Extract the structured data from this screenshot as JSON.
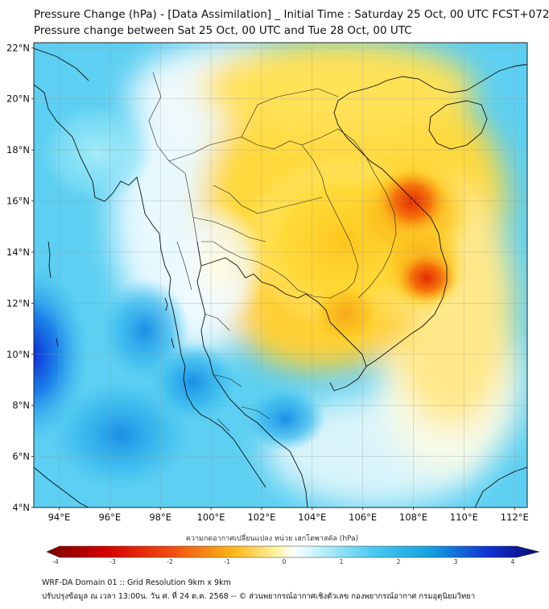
{
  "header": {
    "title_line1": "Pressure Change (hPa) - [Data Assimilation] _ Initial Time : Saturday 25 Oct, 00 UTC FCST+072",
    "title_line2": "Pressure change between Sat 25 Oct, 00 UTC and Tue 28 Oct, 00 UTC"
  },
  "map": {
    "lat_labels": [
      "22°N",
      "20°N",
      "18°N",
      "16°N",
      "14°N",
      "12°N",
      "10°N",
      "8°N",
      "6°N",
      "4°N"
    ],
    "lat_values": [
      22,
      20,
      18,
      16,
      14,
      12,
      10,
      8,
      6,
      4
    ],
    "lon_labels": [
      "94°E",
      "96°E",
      "98°E",
      "100°E",
      "102°E",
      "104°E",
      "106°E",
      "108°E",
      "110°E",
      "112°E"
    ],
    "lon_values": [
      94,
      96,
      98,
      100,
      102,
      104,
      106,
      108,
      110,
      112
    ],
    "extent": {
      "lon_min": 93,
      "lon_max": 112.5,
      "lat_min": 4,
      "lat_max": 22.2
    }
  },
  "colorbar": {
    "label": "ความกดอากาศเปลี่ยนแปลง หน่วย เฮกโตพาสคัล (hPa)",
    "ticks": [
      "-4",
      "-3",
      "-2",
      "-1",
      "0",
      "1",
      "2",
      "3",
      "4"
    ],
    "tick_values": [
      -4,
      -3,
      -2,
      -1,
      0,
      1,
      2,
      3,
      4
    ],
    "colors": {
      "neg_max": "#7a0000",
      "neg_mid": "#f03a10",
      "neg_low": "#ffd21a",
      "zero": "#ffffff",
      "pos_low": "#7fe6f5",
      "pos_mid": "#14a9e4",
      "pos_max": "#0a0a6e"
    }
  },
  "footer": {
    "line1": "WRF-DA Domain 01 :: Grid Resolution 9km x 9km",
    "line2": "ปรับปรุงข้อมูล ณ เวลา 13:00น. วัน ศ. ที่ 24 ต.ค. 2568 -- © ส่วนพยากรณ์อากาศเชิงตัวเลข กองพยากรณ์อากาศ กรมอุตุนิยมวิทยา"
  }
}
